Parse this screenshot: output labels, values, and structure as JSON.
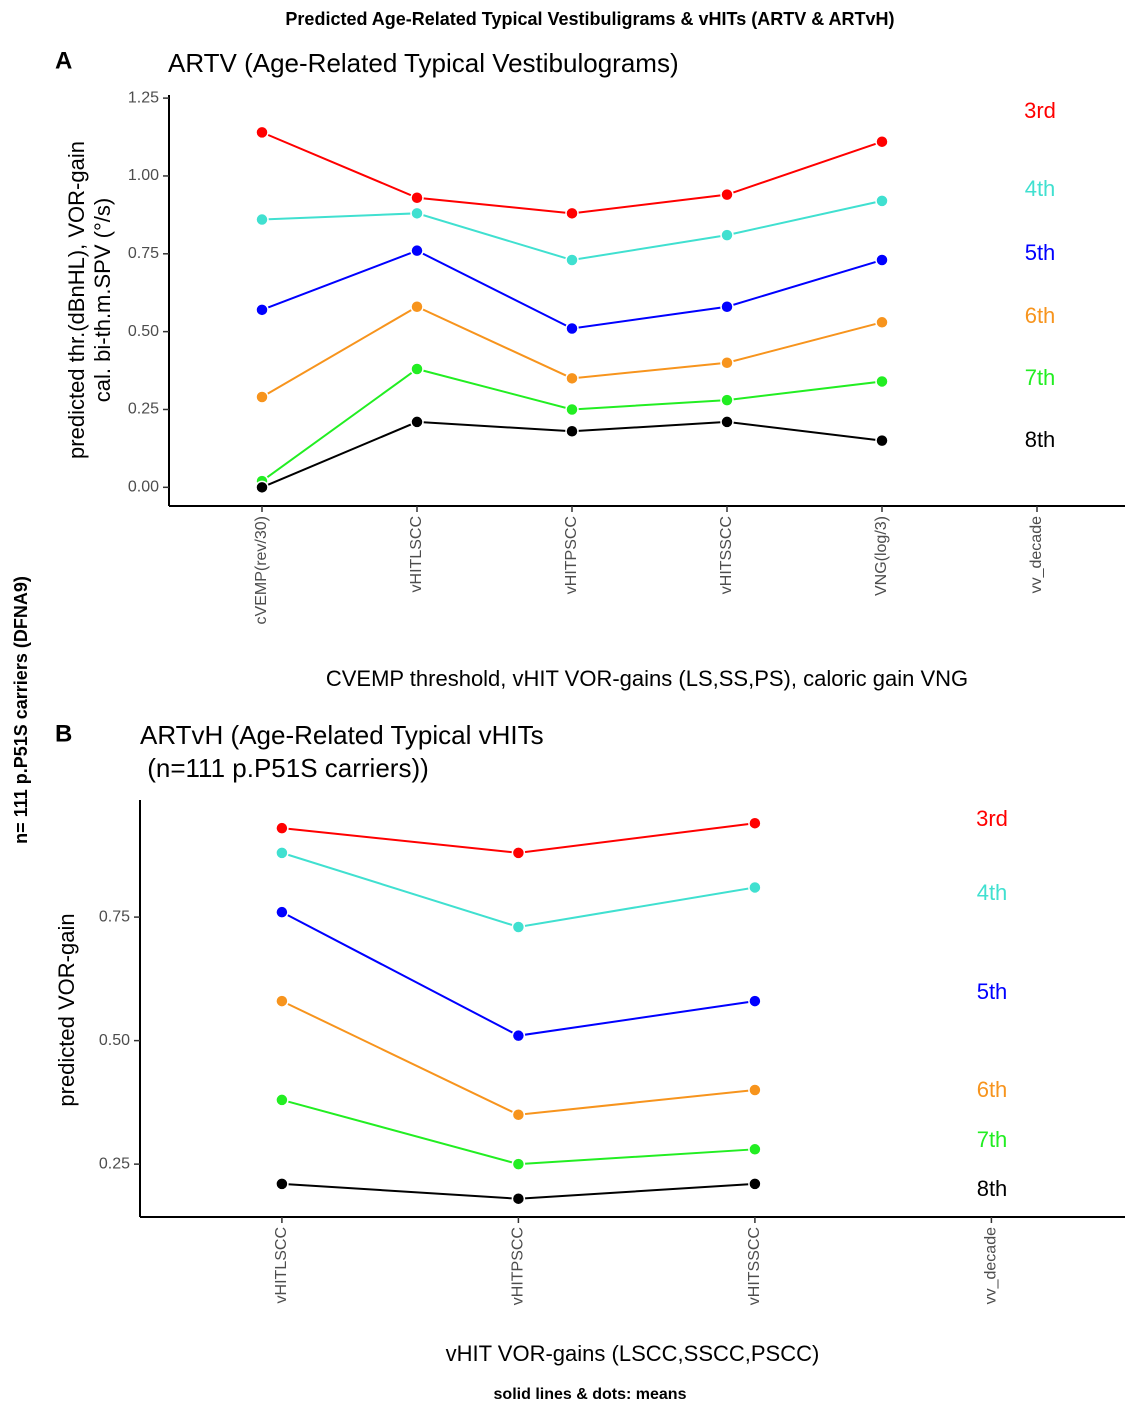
{
  "title": "Predicted Age-Related Typical Vestibuligrams & vHITs (ARTV & ARTvH)",
  "side_label": "n= 111 p.P51S carriers (DFNA9)",
  "footer": "solid lines & dots: means",
  "chart_data": [
    {
      "type": "line",
      "panel": "A",
      "title": "ARTV (Age-Related Typical Vestibulograms)",
      "x_label": "CVEMP threshold, vHIT VOR-gains (LS,SS,PS), caloric gain VNG",
      "y_label": [
        "predicted thr.(dBnHL), VOR-gain",
        "cal. bi-th.m.SPV (°/s)"
      ],
      "categories": [
        "cVEMP(rev/30)",
        "vHITLSCC",
        "vHITPSCC",
        "vHITSSCC",
        "VNG(log/3)",
        "vv_decade"
      ],
      "ylim": [
        -0.06,
        1.26
      ],
      "yticks": [
        {
          "value": 0,
          "label": "0.00"
        },
        0.25,
        {
          "value": 0.5,
          "label": "0.50"
        },
        0.75,
        {
          "value": 1,
          "label": "1.00"
        },
        1.25
      ],
      "series": [
        {
          "name": "3rd",
          "color": "#ff0000",
          "values": [
            1.14,
            0.93,
            0.88,
            0.94,
            1.11,
            null
          ]
        },
        {
          "name": "4th",
          "color": "#40e0d0",
          "values": [
            0.86,
            0.88,
            0.73,
            0.81,
            0.92,
            null
          ]
        },
        {
          "name": "5th",
          "color": "#0000ff",
          "values": [
            0.57,
            0.76,
            0.51,
            0.58,
            0.73,
            null
          ]
        },
        {
          "name": "6th",
          "color": "#f7941d",
          "values": [
            0.29,
            0.58,
            0.35,
            0.4,
            0.53,
            null
          ]
        },
        {
          "name": "7th",
          "color": "#22ee22",
          "values": [
            0.02,
            0.38,
            0.25,
            0.28,
            0.34,
            null
          ]
        },
        {
          "name": "8th",
          "color": "#000000",
          "values": [
            0.0,
            0.21,
            0.18,
            0.21,
            0.15,
            null
          ]
        }
      ]
    },
    {
      "type": "line",
      "panel": "B",
      "title": [
        "ARTvH (Age-Related Typical vHITs",
        " (n=111 p.P51S carriers))"
      ],
      "x_label": "vHIT VOR-gains (LSCC,SSCC,PSCC)",
      "y_label": [
        "predicted VOR-gain"
      ],
      "categories": [
        "vHITLSCC",
        "vHITPSCC",
        "vHITSSCC",
        "vv_decade"
      ],
      "ylim": [
        0.143,
        0.987
      ],
      "yticks": [
        0.25,
        {
          "value": 0.5,
          "label": "0.50"
        },
        0.75
      ],
      "series": [
        {
          "name": "3rd",
          "color": "#ff0000",
          "values": [
            0.93,
            0.88,
            0.94,
            null
          ]
        },
        {
          "name": "4th",
          "color": "#40e0d0",
          "values": [
            0.88,
            0.73,
            0.81,
            null
          ]
        },
        {
          "name": "5th",
          "color": "#0000ff",
          "values": [
            0.76,
            0.51,
            0.58,
            null
          ]
        },
        {
          "name": "6th",
          "color": "#f7941d",
          "values": [
            0.58,
            0.35,
            0.4,
            null
          ]
        },
        {
          "name": "7th",
          "color": "#22ee22",
          "values": [
            0.38,
            0.25,
            0.28,
            null
          ]
        },
        {
          "name": "8th",
          "color": "#000000",
          "values": [
            0.21,
            0.18,
            0.21,
            null
          ]
        }
      ]
    }
  ]
}
